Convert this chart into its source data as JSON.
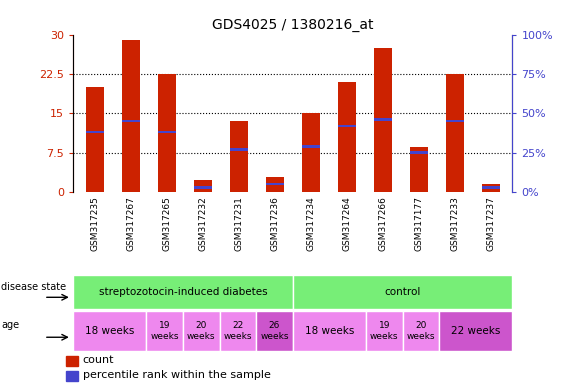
{
  "title": "GDS4025 / 1380216_at",
  "samples": [
    "GSM317235",
    "GSM317267",
    "GSM317265",
    "GSM317232",
    "GSM317231",
    "GSM317236",
    "GSM317234",
    "GSM317264",
    "GSM317266",
    "GSM317177",
    "GSM317233",
    "GSM317237"
  ],
  "count_values": [
    20.0,
    29.0,
    22.5,
    2.2,
    13.5,
    2.8,
    15.0,
    21.0,
    27.5,
    8.5,
    22.5,
    1.5
  ],
  "percentile_values": [
    38,
    45,
    38,
    3,
    27,
    5,
    29,
    42,
    46,
    25,
    45,
    3
  ],
  "ylim_left": [
    0,
    30
  ],
  "ylim_right": [
    0,
    100
  ],
  "yticks_left": [
    0,
    7.5,
    15,
    22.5,
    30
  ],
  "yticks_right": [
    0,
    25,
    50,
    75,
    100
  ],
  "ytick_labels_left": [
    "0",
    "7.5",
    "15",
    "22.5",
    "30"
  ],
  "ytick_labels_right": [
    "0%",
    "25%",
    "50%",
    "75%",
    "100%"
  ],
  "bar_color": "#cc2200",
  "percentile_color": "#4444cc",
  "left_axis_color": "#cc2200",
  "right_axis_color": "#4444cc",
  "bar_width": 0.5,
  "disease_groups": [
    {
      "label": "streptozotocin-induced diabetes",
      "start": 0,
      "end": 6,
      "color": "#77ee77"
    },
    {
      "label": "control",
      "start": 6,
      "end": 12,
      "color": "#77ee77"
    }
  ],
  "age_groups": [
    {
      "label": "18 weeks",
      "start": 0,
      "end": 2,
      "color": "#ee88ee"
    },
    {
      "label": "19\nweeks",
      "start": 2,
      "end": 3,
      "color": "#ee88ee"
    },
    {
      "label": "20\nweeks",
      "start": 3,
      "end": 4,
      "color": "#ee88ee"
    },
    {
      "label": "22\nweeks",
      "start": 4,
      "end": 5,
      "color": "#ee88ee"
    },
    {
      "label": "26\nweeks",
      "start": 5,
      "end": 6,
      "color": "#cc55cc"
    },
    {
      "label": "18 weeks",
      "start": 6,
      "end": 8,
      "color": "#ee88ee"
    },
    {
      "label": "19\nweeks",
      "start": 8,
      "end": 9,
      "color": "#ee88ee"
    },
    {
      "label": "20\nweeks",
      "start": 9,
      "end": 10,
      "color": "#ee88ee"
    },
    {
      "label": "22 weeks",
      "start": 10,
      "end": 12,
      "color": "#cc55cc"
    }
  ],
  "legend_count_label": "count",
  "legend_percentile_label": "percentile rank within the sample"
}
